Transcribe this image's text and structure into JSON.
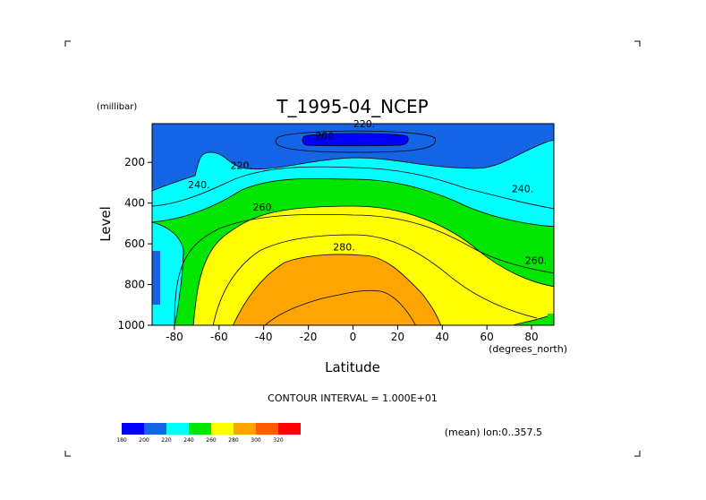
{
  "chart_data": {
    "type": "heatmap",
    "subtype": "filled-contour",
    "title": "T_1995-04_NCEP",
    "xlabel": "Latitude",
    "x_units": "(degrees_north)",
    "ylabel": "Level",
    "y_units": "(millibar)",
    "xlim": [
      -90,
      90
    ],
    "ylim": [
      1000,
      10
    ],
    "y_reversed": true,
    "x_ticks": [
      -80,
      -60,
      -40,
      -20,
      0,
      20,
      40,
      60,
      80
    ],
    "y_ticks": [
      200,
      400,
      600,
      800,
      1000
    ],
    "contour_interval_text": "CONTOUR INTERVAL = 1.000E+01",
    "footnote": "(mean) lon:0..357.5",
    "contour_levels": [
      180,
      200,
      220,
      240,
      260,
      280,
      300,
      320
    ],
    "colorbar": {
      "labels": [
        "180",
        "200",
        "220",
        "240",
        "260",
        "280",
        "300",
        "320"
      ],
      "colors": [
        "#0000ff",
        "#1464e6",
        "#00ffff",
        "#00e600",
        "#ffff00",
        "#ffa500",
        "#ff5a00",
        "#ff0000"
      ]
    },
    "contour_labels": [
      {
        "text": "220.",
        "lat": 5,
        "lev": 10
      },
      {
        "text": "200.",
        "lat": -12,
        "lev": 70
      },
      {
        "text": "220.",
        "lat": -50,
        "lev": 215
      },
      {
        "text": "240.",
        "lat": -69,
        "lev": 310
      },
      {
        "text": "240.",
        "lat": 76,
        "lev": 330
      },
      {
        "text": "260.",
        "lat": -40,
        "lev": 420
      },
      {
        "text": "280.",
        "lat": -4,
        "lev": 615
      },
      {
        "text": "260.",
        "lat": 82,
        "lev": 680
      }
    ]
  }
}
